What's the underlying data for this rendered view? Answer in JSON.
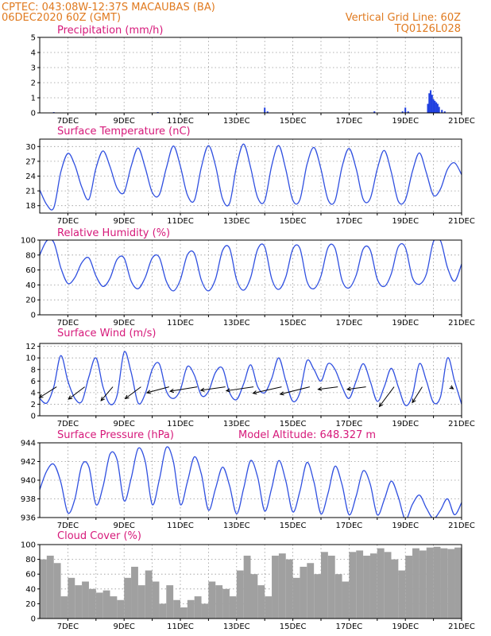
{
  "header": {
    "line1_left": "CPTEC:   043:08W-12:37S   MACAUBAS (BA)",
    "line2_left": "06DEC2020 60Z (GMT)",
    "line1_right": "Vertical Grid Line: 60Z",
    "line2_right": "TQ0126L028"
  },
  "colors": {
    "header": "#e07a1f",
    "title": "#d6197a",
    "line": "#3050e0",
    "bar": "#2040e0",
    "cloud": "#a0a0a0"
  },
  "date_ticks": [
    "7DEC",
    "9DEC",
    "11DEC",
    "13DEC",
    "15DEC",
    "17DEC",
    "19DEC",
    "21DEC"
  ],
  "chart_data": [
    {
      "id": "precip",
      "type": "bar",
      "title": "Precipitation (mm/h)",
      "ylim": [
        0,
        5
      ],
      "yticks": [
        0,
        1,
        2,
        3,
        4,
        5
      ],
      "x": [
        6.5,
        10.2,
        14.0,
        14.1,
        17.9,
        18.9,
        19.0,
        19.1,
        19.8,
        19.85,
        19.9,
        19.95,
        20.0,
        20.05,
        20.1,
        20.15,
        20.2,
        20.3,
        20.4
      ],
      "values": [
        0.05,
        0.05,
        0.35,
        0.1,
        0.1,
        0.1,
        0.35,
        0.1,
        0.6,
        1.3,
        1.5,
        1.2,
        0.9,
        0.8,
        0.7,
        0.6,
        0.4,
        0.2,
        0.1
      ]
    },
    {
      "id": "temp",
      "type": "line",
      "title": "Surface Temperature (nC)",
      "ylim": [
        16.5,
        31.5
      ],
      "yticks": [
        18,
        21,
        24,
        27,
        30
      ],
      "x": [
        6.0,
        6.25,
        6.5,
        6.75,
        7.0,
        7.25,
        7.5,
        7.75,
        8.0,
        8.25,
        8.5,
        8.75,
        9.0,
        9.25,
        9.5,
        9.75,
        10.0,
        10.25,
        10.5,
        10.75,
        11.0,
        11.25,
        11.5,
        11.75,
        12.0,
        12.25,
        12.5,
        12.75,
        13.0,
        13.25,
        13.5,
        13.75,
        14.0,
        14.25,
        14.5,
        14.75,
        15.0,
        15.25,
        15.5,
        15.75,
        16.0,
        16.25,
        16.5,
        16.75,
        17.0,
        17.25,
        17.5,
        17.75,
        18.0,
        18.25,
        18.5,
        18.75,
        19.0,
        19.25,
        19.5,
        19.75,
        20.0,
        20.25,
        20.5,
        20.75,
        21.0
      ],
      "y": [
        21.2,
        18.2,
        17.6,
        24.8,
        28.6,
        26.2,
        21.7,
        19.3,
        25.6,
        29.1,
        25.9,
        21.6,
        20.7,
        26.0,
        29.7,
        25.7,
        20.7,
        20.2,
        25.6,
        30.1,
        26.0,
        20.2,
        19.1,
        25.9,
        30.2,
        26.1,
        19.4,
        18.5,
        26.1,
        30.5,
        25.7,
        19.6,
        19.0,
        26.2,
        30.2,
        25.3,
        19.1,
        19.2,
        26.3,
        29.8,
        25.4,
        19.2,
        19.0,
        25.9,
        29.6,
        25.5,
        19.3,
        19.4,
        25.4,
        29.2,
        24.8,
        18.9,
        19.2,
        24.9,
        28.7,
        24.6,
        20.1,
        21.4,
        25.4,
        26.7,
        24.3
      ],
      "series": [
        {
          "values_key": "y"
        }
      ]
    },
    {
      "id": "rh",
      "type": "line",
      "title": "Relative Humidity (%)",
      "ylim": [
        0,
        100
      ],
      "yticks": [
        0,
        20,
        40,
        60,
        80,
        100
      ],
      "x": [
        6.0,
        6.25,
        6.5,
        6.75,
        7.0,
        7.25,
        7.5,
        7.75,
        8.0,
        8.25,
        8.5,
        8.75,
        9.0,
        9.25,
        9.5,
        9.75,
        10.0,
        10.25,
        10.5,
        10.75,
        11.0,
        11.25,
        11.5,
        11.75,
        12.0,
        12.25,
        12.5,
        12.75,
        13.0,
        13.25,
        13.5,
        13.75,
        14.0,
        14.25,
        14.5,
        14.75,
        15.0,
        15.25,
        15.5,
        15.75,
        16.0,
        16.25,
        16.5,
        16.75,
        17.0,
        17.25,
        17.5,
        17.75,
        18.0,
        18.25,
        18.5,
        18.75,
        19.0,
        19.25,
        19.5,
        19.75,
        20.0,
        20.25,
        20.5,
        20.75,
        21.0
      ],
      "y": [
        80,
        99,
        97,
        63,
        42,
        50,
        70,
        76,
        52,
        38,
        49,
        74,
        76,
        45,
        35,
        50,
        76,
        77,
        45,
        32,
        47,
        80,
        82,
        46,
        32,
        48,
        86,
        89,
        47,
        33,
        50,
        88,
        91,
        48,
        34,
        51,
        88,
        89,
        45,
        35,
        52,
        90,
        89,
        46,
        36,
        53,
        88,
        87,
        48,
        38,
        55,
        91,
        90,
        50,
        41,
        55,
        98,
        99,
        63,
        45,
        68
      ]
    },
    {
      "id": "wind",
      "type": "line",
      "title": "Surface Wind (m/s)",
      "ylim": [
        0,
        12.5
      ],
      "yticks": [
        0,
        2,
        4,
        6,
        8,
        10,
        12
      ],
      "x": [
        6.0,
        6.25,
        6.5,
        6.75,
        7.0,
        7.25,
        7.5,
        7.75,
        8.0,
        8.25,
        8.5,
        8.75,
        9.0,
        9.25,
        9.5,
        9.75,
        10.0,
        10.25,
        10.5,
        10.75,
        11.0,
        11.25,
        11.5,
        11.75,
        12.0,
        12.25,
        12.5,
        12.75,
        13.0,
        13.25,
        13.5,
        13.75,
        14.0,
        14.25,
        14.5,
        14.75,
        15.0,
        15.25,
        15.5,
        15.75,
        16.0,
        16.25,
        16.5,
        16.75,
        17.0,
        17.25,
        17.5,
        17.75,
        18.0,
        18.25,
        18.5,
        18.75,
        19.0,
        19.25,
        19.5,
        19.75,
        20.0,
        20.25,
        20.5,
        20.75,
        21.0
      ],
      "y": [
        3.0,
        2.2,
        5.0,
        10.4,
        6.0,
        3.0,
        2.5,
        6.8,
        10.0,
        5.0,
        2.0,
        3.5,
        11.0,
        7.5,
        2.2,
        3.8,
        8.0,
        9.0,
        4.3,
        3.0,
        4.5,
        8.5,
        7.0,
        3.5,
        4.2,
        7.5,
        8.2,
        4.0,
        2.8,
        5.5,
        8.8,
        5.0,
        4.0,
        6.5,
        10.0,
        6.0,
        2.5,
        4.0,
        9.5,
        8.0,
        6.0,
        9.0,
        8.0,
        5.0,
        3.0,
        6.0,
        9.0,
        6.0,
        2.5,
        5.0,
        8.2,
        5.0,
        1.8,
        3.5,
        9.0,
        6.0,
        2.3,
        3.3,
        10.0,
        6.0,
        2.0
      ],
      "arrows": [
        {
          "x": 6.6,
          "y": 5.0,
          "u": -3.5,
          "v": -2.2
        },
        {
          "x": 7.6,
          "y": 5.0,
          "u": -3.3,
          "v": -2.5
        },
        {
          "x": 8.6,
          "y": 5.0,
          "u": -2.4,
          "v": -2.8
        },
        {
          "x": 9.6,
          "y": 5.0,
          "u": -3.2,
          "v": -2.4
        },
        {
          "x": 10.6,
          "y": 5.0,
          "u": -4.5,
          "v": -1.2
        },
        {
          "x": 11.6,
          "y": 5.0,
          "u": -5.5,
          "v": -0.9
        },
        {
          "x": 12.6,
          "y": 5.0,
          "u": -5.0,
          "v": -0.7
        },
        {
          "x": 13.6,
          "y": 5.0,
          "u": -5.5,
          "v": -0.8
        },
        {
          "x": 14.6,
          "y": 5.0,
          "u": -5.8,
          "v": -1.3
        },
        {
          "x": 15.6,
          "y": 5.0,
          "u": -6.0,
          "v": -1.5
        },
        {
          "x": 16.6,
          "y": 5.0,
          "u": -4.0,
          "v": -0.5
        },
        {
          "x": 17.6,
          "y": 5.0,
          "u": -3.8,
          "v": -0.5
        },
        {
          "x": 18.6,
          "y": 5.0,
          "u": -3.0,
          "v": -4.0
        },
        {
          "x": 19.6,
          "y": 5.0,
          "u": -2.0,
          "v": -3.2
        },
        {
          "x": 20.6,
          "y": 5.0,
          "u": 0.6,
          "v": -0.4
        }
      ]
    },
    {
      "id": "pressure",
      "type": "line",
      "title": "Surface Pressure (hPa)",
      "annotation": "Model Altitude: 648.327 m",
      "ylim": [
        936,
        944
      ],
      "yticks": [
        936,
        938,
        940,
        942,
        944
      ],
      "x": [
        6.0,
        6.25,
        6.5,
        6.75,
        7.0,
        7.25,
        7.5,
        7.75,
        8.0,
        8.25,
        8.5,
        8.75,
        9.0,
        9.25,
        9.5,
        9.75,
        10.0,
        10.25,
        10.5,
        10.75,
        11.0,
        11.25,
        11.5,
        11.75,
        12.0,
        12.25,
        12.5,
        12.75,
        13.0,
        13.25,
        13.5,
        13.75,
        14.0,
        14.25,
        14.5,
        14.75,
        15.0,
        15.25,
        15.5,
        15.75,
        16.0,
        16.25,
        16.5,
        16.75,
        17.0,
        17.25,
        17.5,
        17.75,
        18.0,
        18.25,
        18.5,
        18.75,
        19.0,
        19.25,
        19.5,
        19.75,
        20.0,
        20.25,
        20.5,
        20.75,
        21.0
      ],
      "y": [
        939.0,
        941.0,
        941.7,
        939.8,
        936.5,
        938.0,
        941.6,
        941.4,
        937.4,
        939.3,
        942.8,
        942.2,
        937.8,
        940.2,
        943.4,
        942.0,
        937.4,
        940.0,
        943.5,
        942.0,
        937.4,
        939.8,
        942.5,
        940.6,
        936.8,
        939.1,
        941.4,
        939.4,
        936.4,
        939.1,
        942.1,
        940.3,
        936.7,
        939.2,
        942.1,
        939.9,
        936.6,
        938.8,
        941.9,
        939.8,
        936.4,
        938.6,
        941.5,
        939.5,
        936.3,
        938.3,
        941.0,
        939.6,
        936.3,
        937.9,
        939.9,
        938.2,
        935.8,
        937.4,
        938.4,
        937.0,
        935.9,
        936.8,
        938.0,
        936.3,
        937.6
      ]
    },
    {
      "id": "cloud",
      "type": "area",
      "title": "Cloud Cover (%)",
      "ylim": [
        0,
        100
      ],
      "yticks": [
        0,
        20,
        40,
        60,
        80,
        100
      ],
      "x": [
        6.0,
        6.25,
        6.5,
        6.75,
        7.0,
        7.25,
        7.5,
        7.75,
        8.0,
        8.25,
        8.5,
        8.75,
        9.0,
        9.25,
        9.5,
        9.75,
        10.0,
        10.25,
        10.5,
        10.75,
        11.0,
        11.25,
        11.5,
        11.75,
        12.0,
        12.25,
        12.5,
        12.75,
        13.0,
        13.25,
        13.5,
        13.75,
        14.0,
        14.25,
        14.5,
        14.75,
        15.0,
        15.25,
        15.5,
        15.75,
        16.0,
        16.25,
        16.5,
        16.75,
        17.0,
        17.25,
        17.5,
        17.75,
        18.0,
        18.25,
        18.5,
        18.75,
        19.0,
        19.25,
        19.5,
        19.75,
        20.0,
        20.25,
        20.5,
        20.75,
        21.0
      ],
      "values": [
        80,
        85,
        75,
        30,
        55,
        45,
        50,
        40,
        35,
        38,
        30,
        25,
        55,
        70,
        45,
        65,
        50,
        20,
        45,
        25,
        15,
        25,
        30,
        20,
        50,
        45,
        40,
        30,
        65,
        85,
        60,
        45,
        30,
        85,
        88,
        80,
        55,
        70,
        75,
        60,
        90,
        85,
        60,
        50,
        90,
        92,
        85,
        88,
        95,
        90,
        80,
        65,
        85,
        95,
        92,
        96,
        97,
        95,
        94,
        95,
        96
      ]
    }
  ]
}
